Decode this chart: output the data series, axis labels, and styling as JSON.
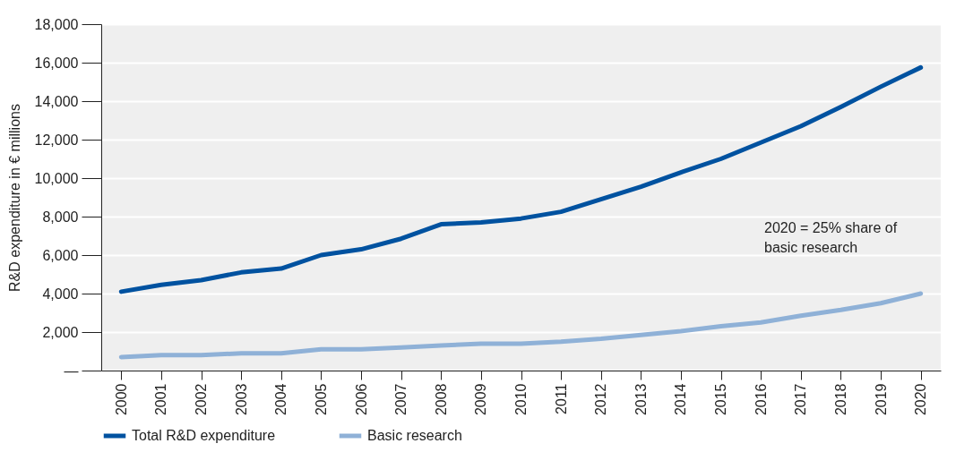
{
  "chart_data": {
    "type": "line",
    "ylabel": "R&D expenditure in € millions",
    "categories": [
      "2000",
      "2001",
      "2002",
      "2003",
      "2004",
      "2005",
      "2006",
      "2007",
      "2008",
      "2009",
      "2010",
      "2011",
      "2012",
      "2013",
      "2014",
      "2015",
      "2016",
      "2017",
      "2018",
      "2019",
      "2020"
    ],
    "series": [
      {
        "name": "Total R&D expenditure",
        "color": "#0052a0",
        "values": [
          4100,
          4450,
          4700,
          5100,
          5300,
          6000,
          6300,
          6850,
          7600,
          7700,
          7900,
          8250,
          8900,
          9550,
          10300,
          11000,
          11850,
          12700,
          13700,
          14750,
          15750
        ]
      },
      {
        "name": "Basic research",
        "color": "#8fb1d7",
        "values": [
          700,
          800,
          800,
          900,
          900,
          1100,
          1100,
          1200,
          1300,
          1400,
          1400,
          1500,
          1650,
          1850,
          2050,
          2300,
          2500,
          2850,
          3150,
          3500,
          4000
        ]
      }
    ],
    "ylim": [
      0,
      18000
    ],
    "yticks": [
      {
        "value": 0,
        "label": "—"
      },
      {
        "value": 2000,
        "label": "2,000"
      },
      {
        "value": 4000,
        "label": "4,000"
      },
      {
        "value": 6000,
        "label": "6,000"
      },
      {
        "value": 8000,
        "label": "8,000"
      },
      {
        "value": 10000,
        "label": "10,000"
      },
      {
        "value": 12000,
        "label": "12,000"
      },
      {
        "value": 14000,
        "label": "14,000"
      },
      {
        "value": 16000,
        "label": "16,000"
      },
      {
        "value": 18000,
        "label": "18,000"
      }
    ],
    "grid": "y",
    "legend": "bottom",
    "line_style": "solid",
    "marker": "none",
    "annotations": [
      "2020 = 25% share of\nbasic research"
    ]
  }
}
